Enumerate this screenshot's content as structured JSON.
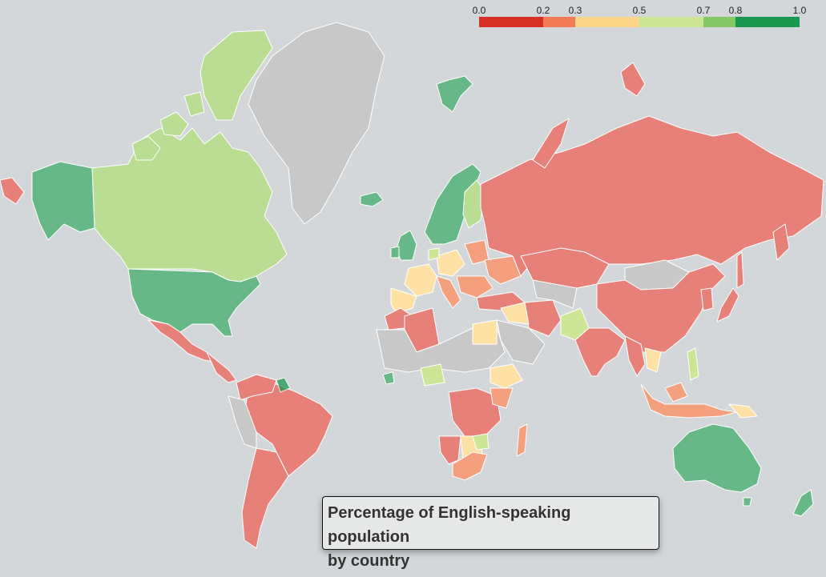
{
  "title": {
    "line1": "Percentage of English-speaking population",
    "line2": "by country"
  },
  "legend": {
    "ticks": [
      "0.0",
      "0.2",
      "0.3",
      "0.5",
      "0.7",
      "0.8",
      "1.0"
    ],
    "tick_values": [
      0.0,
      0.2,
      0.3,
      0.5,
      0.7,
      0.8,
      1.0
    ],
    "bins": [
      {
        "from": 0.0,
        "to": 0.2,
        "color": "#d73027"
      },
      {
        "from": 0.2,
        "to": 0.3,
        "color": "#f47c55"
      },
      {
        "from": 0.3,
        "to": 0.5,
        "color": "#fdd68a"
      },
      {
        "from": 0.5,
        "to": 0.7,
        "color": "#cce695"
      },
      {
        "from": 0.7,
        "to": 0.8,
        "color": "#86c866"
      },
      {
        "from": 0.8,
        "to": 1.0,
        "color": "#1a9850"
      }
    ]
  },
  "colors": {
    "ocean": "#d3d7da",
    "no_data": "#c8c8c8",
    "border": "#ffffff"
  }
}
